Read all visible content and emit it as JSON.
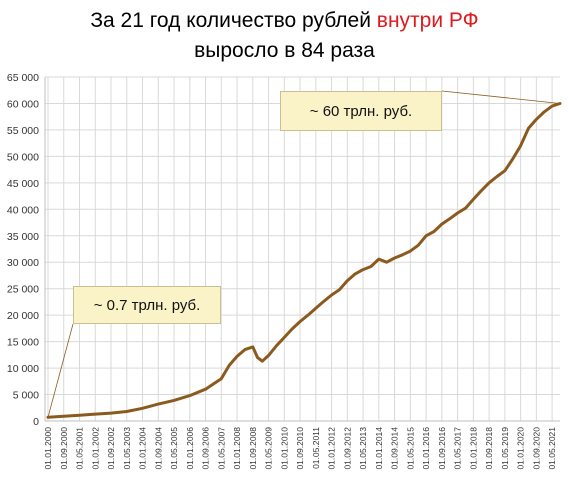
{
  "title": {
    "line1_prefix": "За 21 год количество рублей ",
    "line1_accent": "внутри РФ",
    "line2": "выросло в 84 раза"
  },
  "annotations": {
    "high": "~ 60 трлн. руб.",
    "low": "~ 0.7 трлн. руб."
  },
  "colors": {
    "line": "#8b5a1e",
    "accent": "#e0191e",
    "grid": "#d9d9d9",
    "note_bg": "#fbf3c8"
  },
  "chart_data": {
    "type": "line",
    "title": "За 21 год количество рублей внутри РФ выросло в 84 раза",
    "xlabel": "",
    "ylabel": "",
    "ylim": [
      0,
      65000
    ],
    "grid": true,
    "yticks": [
      0,
      5000,
      10000,
      15000,
      20000,
      25000,
      30000,
      35000,
      40000,
      45000,
      50000,
      55000,
      60000,
      65000
    ],
    "ytick_labels": [
      "0",
      "5 000",
      "10 000",
      "15 000",
      "20 000",
      "25 000",
      "30 000",
      "35 000",
      "40 000",
      "45 000",
      "50 000",
      "55 000",
      "60 000",
      "65 000"
    ],
    "xtick_labels": [
      "01.01.2000",
      "01.09.2000",
      "01.05.2001",
      "01.01.2002",
      "01.09.2002",
      "01.05.2003",
      "01.01.2004",
      "01.09.2004",
      "01.05.2005",
      "01.01.2006",
      "01.09.2006",
      "01.05.2007",
      "01.01.2008",
      "01.09.2008",
      "01.05.2009",
      "01.01.2010",
      "01.09.2010",
      "01.05.2011",
      "01.01.2012",
      "01.09.2012",
      "01.05.2013",
      "01.01.2014",
      "01.09.2014",
      "01.05.2015",
      "01.01.2016",
      "01.09.2016",
      "01.05.2017",
      "01.01.2018",
      "01.09.2018",
      "01.05.2019",
      "01.01.2020",
      "01.09.2020",
      "01.05.2021"
    ],
    "series": [
      {
        "values": [
          [
            0,
            700
          ],
          [
            1,
            900
          ],
          [
            2,
            1100
          ],
          [
            3,
            1300
          ],
          [
            4,
            1500
          ],
          [
            5,
            1800
          ],
          [
            6,
            2400
          ],
          [
            7,
            3200
          ],
          [
            8,
            3900
          ],
          [
            9,
            4800
          ],
          [
            10,
            6000
          ],
          [
            11,
            8000
          ],
          [
            11.5,
            10500
          ],
          [
            12,
            12200
          ],
          [
            12.5,
            13500
          ],
          [
            13,
            14000
          ],
          [
            13.3,
            12000
          ],
          [
            13.6,
            11300
          ],
          [
            14,
            12400
          ],
          [
            14.5,
            14200
          ],
          [
            15,
            15800
          ],
          [
            15.5,
            17400
          ],
          [
            16,
            18800
          ],
          [
            16.5,
            20000
          ],
          [
            17,
            21300
          ],
          [
            17.5,
            22600
          ],
          [
            18,
            23800
          ],
          [
            18.5,
            24800
          ],
          [
            19,
            26500
          ],
          [
            19.5,
            27800
          ],
          [
            20,
            28600
          ],
          [
            20.5,
            29200
          ],
          [
            21,
            30600
          ],
          [
            21.5,
            30000
          ],
          [
            22,
            30800
          ],
          [
            22.5,
            31400
          ],
          [
            23,
            32100
          ],
          [
            23.5,
            33200
          ],
          [
            24,
            35000
          ],
          [
            24.5,
            35800
          ],
          [
            25,
            37200
          ],
          [
            25.5,
            38200
          ],
          [
            26,
            39300
          ],
          [
            26.5,
            40200
          ],
          [
            27,
            41900
          ],
          [
            27.5,
            43500
          ],
          [
            28,
            45000
          ],
          [
            28.5,
            46200
          ],
          [
            29,
            47300
          ],
          [
            29.5,
            49500
          ],
          [
            30,
            52000
          ],
          [
            30.5,
            55300
          ],
          [
            31,
            57000
          ],
          [
            31.5,
            58400
          ],
          [
            32,
            59500
          ],
          [
            32.5,
            60000
          ]
        ]
      }
    ]
  }
}
